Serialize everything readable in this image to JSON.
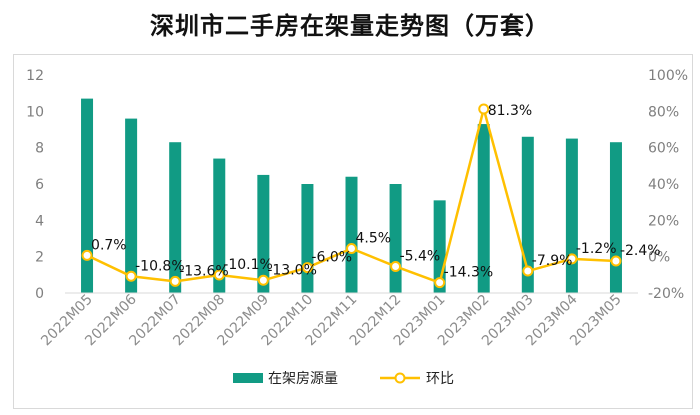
{
  "chart_data": {
    "type": "bar+line",
    "title": "深圳市二手房在架量走势图（万套）",
    "categories": [
      "2022M05",
      "2022M06",
      "2022M07",
      "2022M08",
      "2022M09",
      "2022M10",
      "2022M11",
      "2022M12",
      "2023M01",
      "2023M02",
      "2023M03",
      "2023M04",
      "2023M05"
    ],
    "series": [
      {
        "name": "在架房源量",
        "type": "bar",
        "axis": "left",
        "color": "#119b84",
        "values": [
          10.7,
          9.6,
          8.3,
          7.4,
          6.5,
          6.0,
          6.4,
          6.0,
          5.1,
          9.3,
          8.6,
          8.5,
          8.3
        ]
      },
      {
        "name": "环比",
        "type": "line",
        "axis": "right",
        "color": "#ffc000",
        "values": [
          0.7,
          -10.8,
          -13.6,
          -10.1,
          -13.0,
          -6.0,
          4.5,
          -5.4,
          -14.3,
          81.3,
          -7.9,
          -1.2,
          -2.4
        ],
        "labels": [
          "0.7%",
          "-10.8%",
          "-13.6%",
          "-10.1%",
          "-13.0%",
          "-6.0%",
          "4.5%",
          "-5.4%",
          "-14.3%",
          "81.3%",
          "-7.9%",
          "-1.2%",
          "-2.4%"
        ]
      }
    ],
    "left_axis": {
      "ylim": [
        0,
        12
      ],
      "ticks": [
        "0",
        "2",
        "4",
        "6",
        "8",
        "10",
        "12"
      ]
    },
    "right_axis": {
      "ylim": [
        -20,
        100
      ],
      "ticks": [
        "-20%",
        "0%",
        "20%",
        "40%",
        "60%",
        "80%",
        "100%"
      ]
    },
    "legend": {
      "placement": "bottom",
      "items": [
        "在架房源量",
        "环比"
      ]
    },
    "grid": false
  }
}
